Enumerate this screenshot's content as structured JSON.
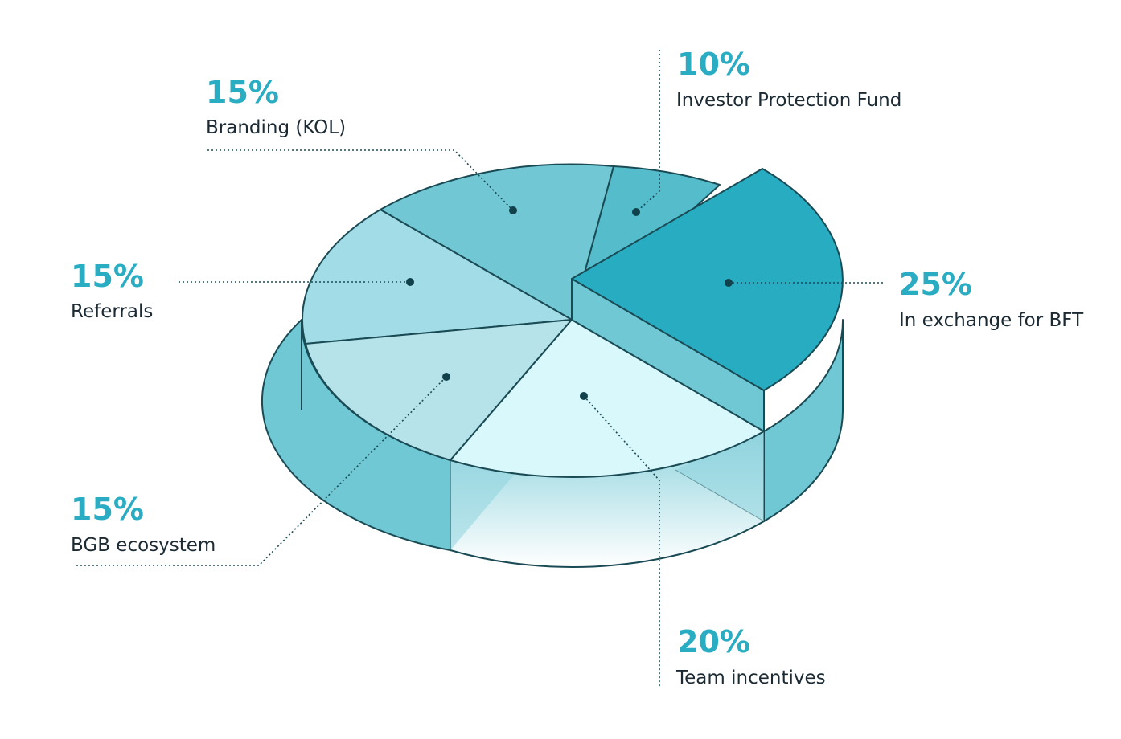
{
  "chart_data": {
    "type": "pie",
    "title": "",
    "slices": [
      {
        "label": "In exchange for BFT",
        "percent_text": "25%",
        "value": 25,
        "color": "#28acc1"
      },
      {
        "label": "Team incentives",
        "percent_text": "20%",
        "value": 20,
        "color": "#d9f8fc"
      },
      {
        "label": "BGB ecosystem",
        "percent_text": "15%",
        "value": 15,
        "color": "#b6e3ea"
      },
      {
        "label": "Referrals",
        "percent_text": "15%",
        "value": 15,
        "color": "#a2dce6"
      },
      {
        "label": "Branding (KOL)",
        "percent_text": "15%",
        "value": 15,
        "color": "#71c8d4"
      },
      {
        "label": "Investor Protection Fund",
        "percent_text": "10%",
        "value": 10,
        "color": "#55bccb"
      }
    ],
    "side_color": "#6fc8d4",
    "outline_color": "#1a4b55",
    "percent_color": "#2aacc3"
  }
}
